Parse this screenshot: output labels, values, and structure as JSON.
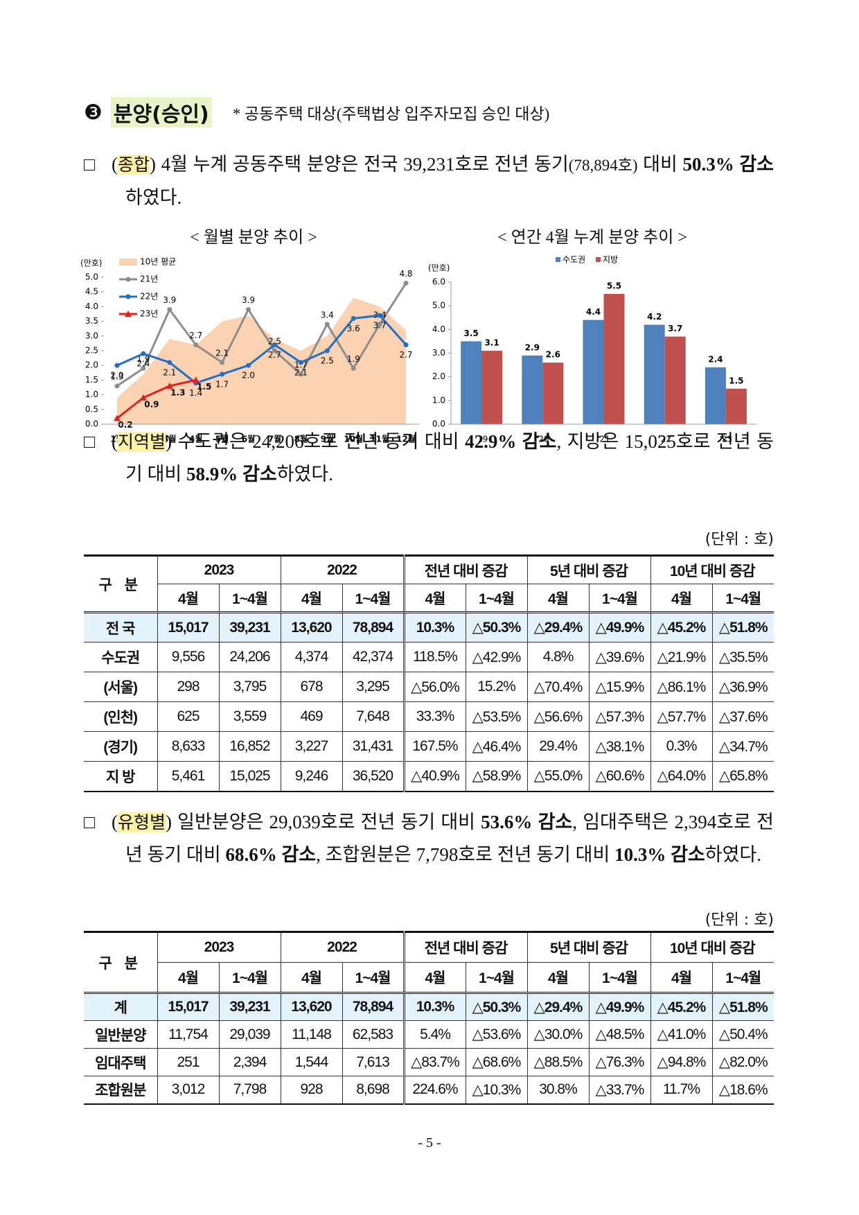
{
  "heading": {
    "marker": "❸",
    "title": "분양(승인)",
    "note": "* 공동주택 대상(주택법상 입주자모집 승인 대상)"
  },
  "paragraphs": [
    {
      "marker": "□",
      "segments": [
        {
          "text": "(",
          "style": "plain"
        },
        {
          "text": "종합",
          "style": "hl"
        },
        {
          "text": ") 4월 누계 공동주택 분양은 전국 39,231호로 전년 동기",
          "style": "plain"
        },
        {
          "text": "(78,894호)",
          "style": "small"
        },
        {
          "text": " 대비 ",
          "style": "plain"
        },
        {
          "text": "50.3% 감소",
          "style": "bold"
        },
        {
          "text": "하였다.",
          "style": "plain"
        }
      ]
    },
    {
      "marker": "□",
      "segments": [
        {
          "text": "(",
          "style": "plain"
        },
        {
          "text": "지역별",
          "style": "hl"
        },
        {
          "text": ") 수도권은 24,206호로 전년 동기 대비 ",
          "style": "plain"
        },
        {
          "text": "42.9% 감소",
          "style": "bold"
        },
        {
          "text": ", 지방은 15,025호로 전년 동기 대비 ",
          "style": "plain"
        },
        {
          "text": "58.9% 감소",
          "style": "bold"
        },
        {
          "text": "하였다.",
          "style": "plain"
        }
      ]
    },
    {
      "marker": "□",
      "segments": [
        {
          "text": "(",
          "style": "plain"
        },
        {
          "text": "유형별",
          "style": "hl"
        },
        {
          "text": ") 일반분양은 29,039호로 전년 동기 대비 ",
          "style": "plain"
        },
        {
          "text": "53.6% 감소",
          "style": "bold"
        },
        {
          "text": ", 임대주택은 2,394호로 전년 동기 대비 ",
          "style": "plain"
        },
        {
          "text": "68.6% 감소",
          "style": "bold"
        },
        {
          "text": ", 조합원분은 7,798호로 전년 동기 대비 ",
          "style": "plain"
        },
        {
          "text": "10.3% 감소",
          "style": "bold"
        },
        {
          "text": "하였다.",
          "style": "plain"
        }
      ]
    }
  ],
  "chart_data": [
    {
      "type": "line",
      "title": "< 월별 분양 추이 >",
      "y_label": "(만호)",
      "categories": [
        "1월",
        "2월",
        "3월",
        "4월",
        "5월",
        "6월",
        "7월",
        "8월",
        "9월",
        "10월",
        "11월",
        "12월"
      ],
      "ylim": [
        0,
        5
      ],
      "yticks": [
        {
          "value": 0,
          "label": "0.0"
        },
        {
          "value": 0.5,
          "label": "0.5"
        },
        {
          "value": 1,
          "label": "1.0"
        },
        {
          "value": 1.5,
          "label": "1.5"
        },
        {
          "value": 2,
          "label": "2.0"
        },
        {
          "value": 2.5,
          "label": "2.5"
        },
        {
          "value": 3,
          "label": "3.0"
        },
        {
          "value": 3.5,
          "label": "3.5"
        },
        {
          "value": 4,
          "label": "4.0"
        },
        {
          "value": 4.5,
          "label": "4.5"
        },
        {
          "value": 5,
          "label": "5.0"
        }
      ],
      "legend": "upper left",
      "series": [
        {
          "name": "10년 평균",
          "color": "#fbd3b2",
          "style": "area",
          "values": [
            0.9,
            1.7,
            2.9,
            2.7,
            3.5,
            3.7,
            2.9,
            2.5,
            3.0,
            4.3,
            4.0,
            3.2
          ]
        },
        {
          "name": "21년",
          "color": "#8c8c8c",
          "style": "line",
          "marker": "circle",
          "values": [
            1.3,
            1.9,
            3.9,
            2.7,
            2.1,
            3.9,
            2.5,
            1.7,
            3.4,
            1.9,
            3.4,
            4.8
          ],
          "value_labels": [
            "1.3",
            "1.9",
            "3.9",
            "2.7",
            "2.1",
            "3.9",
            "2.5",
            "1.7",
            "3.4",
            "1.9",
            "3.4",
            "4.8"
          ]
        },
        {
          "name": "22년",
          "color": "#1f6fc5",
          "style": "line",
          "marker": "circle",
          "values": [
            2.0,
            2.4,
            2.1,
            1.4,
            1.7,
            2.0,
            2.7,
            2.1,
            2.5,
            3.6,
            3.7,
            2.7
          ],
          "value_labels": [
            "2.0",
            "2.4",
            "2.1",
            "1.4",
            "1.7",
            "2.0",
            "2.7",
            "2.1",
            "2.5",
            "3.6",
            "3.7",
            "2.7"
          ]
        },
        {
          "name": "23년",
          "color": "#e3211c",
          "style": "line",
          "marker": "triangle",
          "values": [
            0.2,
            0.9,
            1.3,
            1.5,
            null,
            null,
            null,
            null,
            null,
            null,
            null,
            null
          ],
          "value_labels": [
            "0.2",
            "0.9",
            "1.3",
            "1.5",
            null,
            null,
            null,
            null,
            null,
            null,
            null,
            null
          ]
        }
      ]
    },
    {
      "type": "bar",
      "title": "< 연간 4월 누계 분양 추이 >",
      "y_label": "(만호)",
      "categories": [
        "'19",
        "'20",
        "'21",
        "'22",
        "'23"
      ],
      "ylim": [
        0,
        6
      ],
      "yticks": [
        {
          "value": 0,
          "label": "0.0"
        },
        {
          "value": 1,
          "label": "1.0"
        },
        {
          "value": 2,
          "label": "2.0"
        },
        {
          "value": 3,
          "label": "3.0"
        },
        {
          "value": 4,
          "label": "4.0"
        },
        {
          "value": 5,
          "label": "5.0"
        },
        {
          "value": 6,
          "label": "6.0"
        }
      ],
      "legend": "upper center",
      "series": [
        {
          "name": "수도권",
          "color": "#4f81bd",
          "values": [
            3.5,
            2.9,
            4.4,
            4.2,
            2.4
          ]
        },
        {
          "name": "지방",
          "color": "#c0504d",
          "values": [
            3.1,
            2.6,
            5.5,
            3.7,
            1.5
          ]
        }
      ]
    }
  ],
  "tables": [
    {
      "unit": "(단위 : 호)",
      "header_top": [
        "구 분",
        "2023",
        "2022",
        "전년 대비 증감",
        "5년 대비 증감",
        "10년 대비 증감"
      ],
      "header_sub": [
        "4월",
        "1~4월",
        "4월",
        "1~4월",
        "4월",
        "1~4월",
        "4월",
        "1~4월",
        "4월",
        "1~4월"
      ],
      "rows": [
        [
          "전 국",
          "15,017",
          "39,231",
          "13,620",
          "78,894",
          "10.3%",
          "△50.3%",
          "△29.4%",
          "△49.9%",
          "△45.2%",
          "△51.8%"
        ],
        [
          "수도권",
          "9,556",
          "24,206",
          "4,374",
          "42,374",
          "118.5%",
          "△42.9%",
          "4.8%",
          "△39.6%",
          "△21.9%",
          "△35.5%"
        ],
        [
          "(서울)",
          "298",
          "3,795",
          "678",
          "3,295",
          "△56.0%",
          "15.2%",
          "△70.4%",
          "△15.9%",
          "△86.1%",
          "△36.9%"
        ],
        [
          "(인천)",
          "625",
          "3,559",
          "469",
          "7,648",
          "33.3%",
          "△53.5%",
          "△56.6%",
          "△57.3%",
          "△57.7%",
          "△37.6%"
        ],
        [
          "(경기)",
          "8,633",
          "16,852",
          "3,227",
          "31,431",
          "167.5%",
          "△46.4%",
          "29.4%",
          "△38.1%",
          "0.3%",
          "△34.7%"
        ],
        [
          "지 방",
          "5,461",
          "15,025",
          "9,246",
          "36,520",
          "△40.9%",
          "△58.9%",
          "△55.0%",
          "△60.6%",
          "△64.0%",
          "△65.8%"
        ]
      ]
    },
    {
      "unit": "(단위 : 호)",
      "header_top": [
        "구 분",
        "2023",
        "2022",
        "전년 대비 증감",
        "5년 대비 증감",
        "10년 대비 증감"
      ],
      "header_sub": [
        "4월",
        "1~4월",
        "4월",
        "1~4월",
        "4월",
        "1~4월",
        "4월",
        "1~4월",
        "4월",
        "1~4월"
      ],
      "rows": [
        [
          "계",
          "15,017",
          "39,231",
          "13,620",
          "78,894",
          "10.3%",
          "△50.3%",
          "△29.4%",
          "△49.9%",
          "△45.2%",
          "△51.8%"
        ],
        [
          "일반분양",
          "11,754",
          "29,039",
          "11,148",
          "62,583",
          "5.4%",
          "△53.6%",
          "△30.0%",
          "△48.5%",
          "△41.0%",
          "△50.4%"
        ],
        [
          "임대주택",
          "251",
          "2,394",
          "1,544",
          "7,613",
          "△83.7%",
          "△68.6%",
          "△88.5%",
          "△76.3%",
          "△94.8%",
          "△82.0%"
        ],
        [
          "조합원분",
          "3,012",
          "7,798",
          "928",
          "8,698",
          "224.6%",
          "△10.3%",
          "30.8%",
          "△33.7%",
          "11.7%",
          "△18.6%"
        ]
      ]
    }
  ],
  "page_number": "- 5 -"
}
